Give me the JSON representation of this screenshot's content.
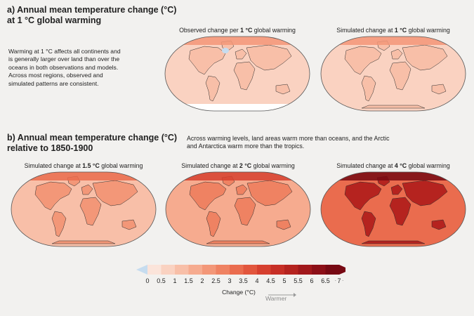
{
  "section_a": {
    "title_line1": "a) Annual mean temperature change (°C)",
    "title_line2": "at 1 °C global warming",
    "description": [
      "Warming at 1 °C affects all continents and",
      "is generally larger over land than over the",
      "oceans in both observations and models.",
      "Across most regions, observed and",
      "simulated patterns are consistent."
    ]
  },
  "section_b": {
    "title_line1": "b) Annual mean temperature change (°C)",
    "title_line2": "relative to 1850-1900",
    "description": [
      "Across warming levels, land areas warm more than oceans, and the Arctic",
      "and Antarctica warm more than the tropics."
    ]
  },
  "maps": [
    {
      "caption_pre": "Observed change per ",
      "caption_bold": "1 °C",
      "caption_post": " global warming",
      "intensity": 1.0
    },
    {
      "caption_pre": "Simulated change at ",
      "caption_bold": "1 °C",
      "caption_post": " global warming",
      "intensity": 1.0
    },
    {
      "caption_pre": "Simulated change at ",
      "caption_bold": "1.5 °C",
      "caption_post": " global warming",
      "intensity": 1.5
    },
    {
      "caption_pre": "Simulated change at ",
      "caption_bold": "2 °C",
      "caption_post": " global warming",
      "intensity": 2.0
    },
    {
      "caption_pre": "Simulated change at ",
      "caption_bold": "4 °C",
      "caption_post": " global warming",
      "intensity": 4.0
    }
  ],
  "colorbar": {
    "ticks": [
      "0",
      "0.5",
      "1",
      "1.5",
      "2",
      "2.5",
      "3",
      "3.5",
      "4",
      "4.5",
      "5",
      "5.5",
      "6",
      "6.5",
      "7"
    ],
    "colors": [
      "#fbe4da",
      "#fad2c1",
      "#f8bfa8",
      "#f6ab8f",
      "#f39778",
      "#ef8262",
      "#ea6c4e",
      "#e2563d",
      "#d6402f",
      "#c72f26",
      "#b5231f",
      "#a1181b",
      "#8c0f17",
      "#770913"
    ],
    "negative_color": "#c6dcef",
    "label": "Change (°C)",
    "warmer_label": "Warmer",
    "dots": "· · ·"
  },
  "chart_data": [
    {
      "type": "heatmap",
      "title": "Observed change per 1 °C global warming",
      "global_warming_level": 1,
      "xlabel": "",
      "ylabel": "",
      "colorbar_range": [
        0,
        7
      ],
      "colorbar_label": "Change (°C)"
    },
    {
      "type": "heatmap",
      "title": "Simulated change at 1 °C global warming",
      "global_warming_level": 1,
      "xlabel": "",
      "ylabel": "",
      "colorbar_range": [
        0,
        7
      ],
      "colorbar_label": "Change (°C)"
    },
    {
      "type": "heatmap",
      "title": "Simulated change at 1.5 °C global warming",
      "global_warming_level": 1.5,
      "xlabel": "",
      "ylabel": "",
      "colorbar_range": [
        0,
        7
      ],
      "colorbar_label": "Change (°C)"
    },
    {
      "type": "heatmap",
      "title": "Simulated change at 2 °C global warming",
      "global_warming_level": 2,
      "xlabel": "",
      "ylabel": "",
      "colorbar_range": [
        0,
        7
      ],
      "colorbar_label": "Change (°C)"
    },
    {
      "type": "heatmap",
      "title": "Simulated change at 4 °C global warming",
      "global_warming_level": 4,
      "xlabel": "",
      "ylabel": "",
      "colorbar_range": [
        0,
        7
      ],
      "colorbar_label": "Change (°C)"
    }
  ]
}
